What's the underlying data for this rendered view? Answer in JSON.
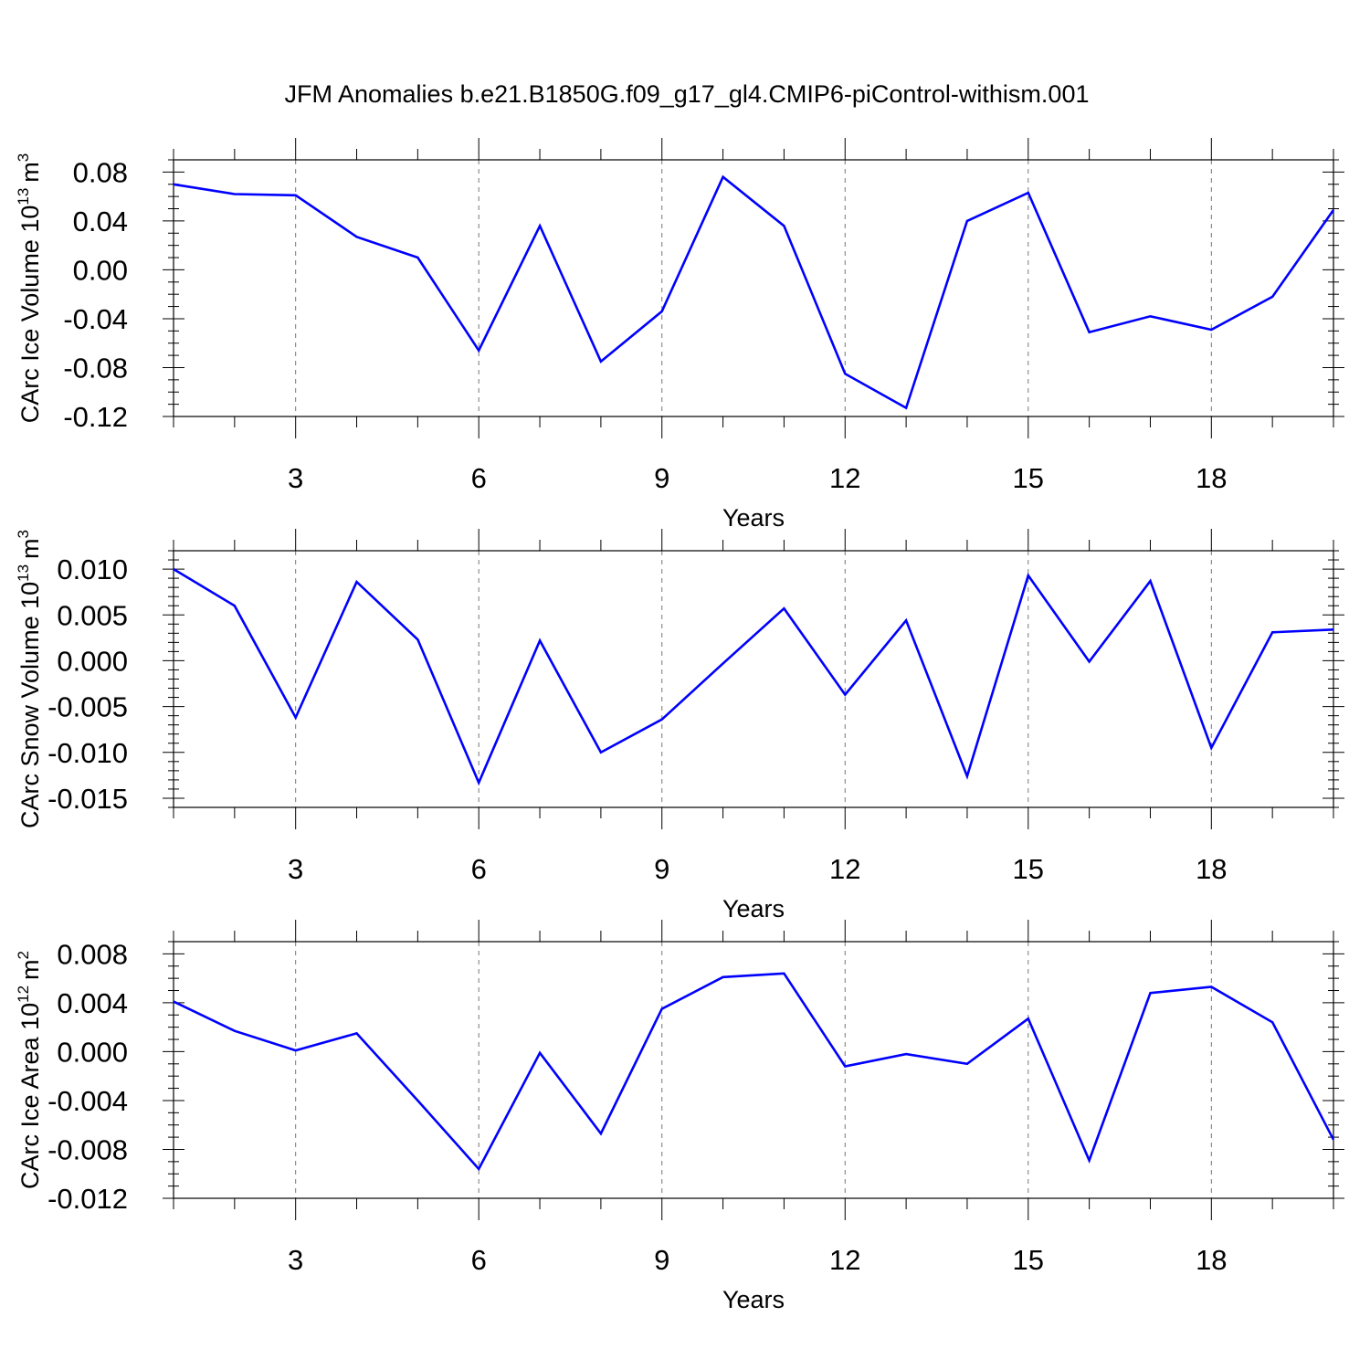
{
  "title": "JFM Anomalies b.e21.B1850G.f09_g17_gl4.CMIP6-piControl-withism.001",
  "chart_data": [
    {
      "type": "line",
      "ylabel": "CArc Ice Volume 10",
      "ylabel_exp": "13",
      "ylabel_unit": "m",
      "ylabel_unit_exp": "3",
      "xlabel": "Years",
      "xlim": [
        1,
        20
      ],
      "ylim": [
        -0.12,
        0.09
      ],
      "xticks": [
        3,
        6,
        9,
        12,
        15,
        18
      ],
      "xtick_labels": [
        "3",
        "6",
        "9",
        "12",
        "15",
        "18"
      ],
      "yticks": [
        -0.12,
        -0.08,
        -0.04,
        0.0,
        0.04,
        0.08
      ],
      "ytick_labels": [
        "-0.12",
        "-0.08",
        "-0.04",
        "0.00",
        "0.04",
        "0.08"
      ],
      "y_minor_step": 0.01,
      "grid": "vertical-dashed-at-major-x-ticks",
      "line_color": "#0000ff",
      "x": [
        1,
        2,
        3,
        4,
        5,
        6,
        7,
        8,
        9,
        10,
        11,
        12,
        13,
        14,
        15,
        16,
        17,
        18,
        19,
        20
      ],
      "values": [
        0.07,
        0.062,
        0.061,
        0.027,
        0.01,
        -0.066,
        0.036,
        -0.075,
        -0.034,
        0.076,
        0.036,
        -0.085,
        -0.113,
        0.04,
        0.063,
        -0.051,
        -0.038,
        -0.049,
        -0.022,
        0.049
      ]
    },
    {
      "type": "line",
      "ylabel": "CArc Snow Volume 10",
      "ylabel_exp": "13",
      "ylabel_unit": "m",
      "ylabel_unit_exp": "3",
      "xlabel": "Years",
      "xlim": [
        1,
        20
      ],
      "ylim": [
        -0.016,
        0.012
      ],
      "xticks": [
        3,
        6,
        9,
        12,
        15,
        18
      ],
      "xtick_labels": [
        "3",
        "6",
        "9",
        "12",
        "15",
        "18"
      ],
      "yticks": [
        -0.015,
        -0.01,
        -0.005,
        0.0,
        0.005,
        0.01
      ],
      "ytick_labels": [
        "-0.015",
        "-0.010",
        "-0.005",
        "0.000",
        "0.005",
        "0.010"
      ],
      "y_minor_step": 0.001,
      "grid": "vertical-dashed-at-major-x-ticks",
      "line_color": "#0000ff",
      "x": [
        1,
        2,
        3,
        4,
        5,
        6,
        7,
        8,
        9,
        10,
        11,
        12,
        13,
        14,
        15,
        16,
        17,
        18,
        19,
        20
      ],
      "values": [
        0.01,
        0.006,
        -0.0062,
        0.0086,
        0.0023,
        -0.0133,
        0.0022,
        -0.01,
        -0.0064,
        -0.0003,
        0.0057,
        -0.0037,
        0.0044,
        -0.0126,
        0.0093,
        -0.0001,
        0.0087,
        -0.0095,
        0.0031,
        0.0034
      ]
    },
    {
      "type": "line",
      "ylabel": "CArc Ice Area 10",
      "ylabel_exp": "12",
      "ylabel_unit": "m",
      "ylabel_unit_exp": "2",
      "xlabel": "Years",
      "xlim": [
        1,
        20
      ],
      "ylim": [
        -0.012,
        0.009
      ],
      "xticks": [
        3,
        6,
        9,
        12,
        15,
        18
      ],
      "xtick_labels": [
        "3",
        "6",
        "9",
        "12",
        "15",
        "18"
      ],
      "yticks": [
        -0.012,
        -0.008,
        -0.004,
        0.0,
        0.004,
        0.008
      ],
      "ytick_labels": [
        "-0.012",
        "-0.008",
        "-0.004",
        "0.000",
        "0.004",
        "0.008"
      ],
      "y_minor_step": 0.001,
      "grid": "vertical-dashed-at-major-x-ticks",
      "line_color": "#0000ff",
      "x": [
        1,
        2,
        3,
        4,
        5,
        6,
        7,
        8,
        9,
        10,
        11,
        12,
        13,
        14,
        15,
        16,
        17,
        18,
        19,
        20
      ],
      "values": [
        0.0041,
        0.0017,
        0.0001,
        0.0015,
        -0.004,
        -0.0096,
        -0.0001,
        -0.0067,
        0.0035,
        0.0061,
        0.0064,
        -0.0012,
        -0.0002,
        -0.001,
        0.0027,
        -0.0089,
        0.0048,
        0.0053,
        0.0024,
        -0.0072
      ]
    }
  ]
}
